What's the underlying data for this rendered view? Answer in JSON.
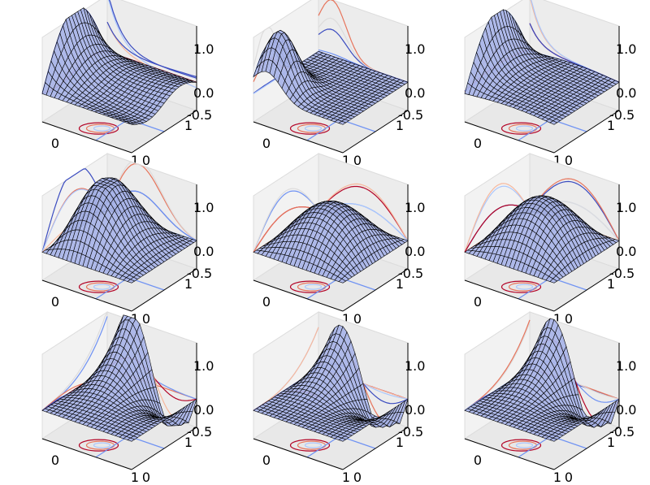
{
  "figure": {
    "layout": "3x3 grid of 3D surface plots with contour projections",
    "surface_color": "#a8b4e8",
    "wire_color": "#000000",
    "pane_color": "#f2f2f2",
    "pane_edge_color": "#dcdcdc",
    "colormap": [
      "#3b4cc0",
      "#6f92f3",
      "#aac7fd",
      "#dddcdc",
      "#f7b89c",
      "#e7745b",
      "#b40426"
    ]
  },
  "chart_data": [
    {
      "type": "surface3d",
      "surface": "U_row1_col1",
      "x_ticklabels": [
        "0",
        "1"
      ],
      "y_ticklabels": [
        "0",
        "1"
      ],
      "z_ticklabels": [
        "1.0",
        "0.0",
        "-0.5"
      ],
      "zlim": [
        -0.5,
        1.0
      ],
      "grid": false
    },
    {
      "type": "surface3d",
      "surface": "U_row1_col2",
      "x_ticklabels": [
        "0",
        "1"
      ],
      "y_ticklabels": [
        "0",
        "1"
      ],
      "z_ticklabels": [
        "1.0",
        "0.0",
        "-0.5"
      ],
      "zlim": [
        -0.5,
        1.0
      ],
      "grid": false
    },
    {
      "type": "surface3d",
      "surface": "U_row1_col3",
      "x_ticklabels": [
        "0",
        "1"
      ],
      "y_ticklabels": [
        "0",
        "1"
      ],
      "z_ticklabels": [
        "1.0",
        "0.0",
        "-0.5"
      ],
      "zlim": [
        -0.5,
        1.0
      ],
      "grid": false
    },
    {
      "type": "surface3d",
      "surface": "U_row2_col1",
      "x_ticklabels": [
        "0",
        "1"
      ],
      "y_ticklabels": [
        "0",
        "1"
      ],
      "z_ticklabels": [
        "1.0",
        "0.0",
        "-0.5"
      ],
      "zlim": [
        -0.5,
        1.0
      ],
      "grid": false
    },
    {
      "type": "surface3d",
      "surface": "U_row2_col2",
      "x_ticklabels": [
        "0",
        "1"
      ],
      "y_ticklabels": [
        "0",
        "1"
      ],
      "z_ticklabels": [
        "1.0",
        "0.0",
        "-0.5"
      ],
      "zlim": [
        -0.5,
        1.0
      ],
      "grid": false
    },
    {
      "type": "surface3d",
      "surface": "U_row2_col3",
      "x_ticklabels": [
        "0",
        "1"
      ],
      "y_ticklabels": [
        "0",
        "1"
      ],
      "z_ticklabels": [
        "1.0",
        "0.0",
        "-0.5"
      ],
      "zlim": [
        -0.5,
        1.0
      ],
      "grid": false
    },
    {
      "type": "surface3d",
      "surface": "U_row3_col1",
      "x_ticklabels": [
        "0",
        "1"
      ],
      "y_ticklabels": [
        "0",
        "1"
      ],
      "z_ticklabels": [
        "1.0",
        "0.0",
        "-0.5"
      ],
      "zlim": [
        -0.5,
        1.0
      ],
      "grid": false
    },
    {
      "type": "surface3d",
      "surface": "U_row3_col2",
      "x_ticklabels": [
        "0",
        "1"
      ],
      "y_ticklabels": [
        "0",
        "1"
      ],
      "z_ticklabels": [
        "1.0",
        "0.0",
        "-0.5"
      ],
      "zlim": [
        -0.5,
        1.0
      ],
      "grid": false
    },
    {
      "type": "surface3d",
      "surface": "U_row3_col3",
      "x_ticklabels": [
        "0",
        "1"
      ],
      "y_ticklabels": [
        "0",
        "1"
      ],
      "z_ticklabels": [
        "1.0",
        "0.0",
        "-0.5"
      ],
      "zlim": [
        -0.5,
        1.0
      ],
      "grid": false
    }
  ]
}
